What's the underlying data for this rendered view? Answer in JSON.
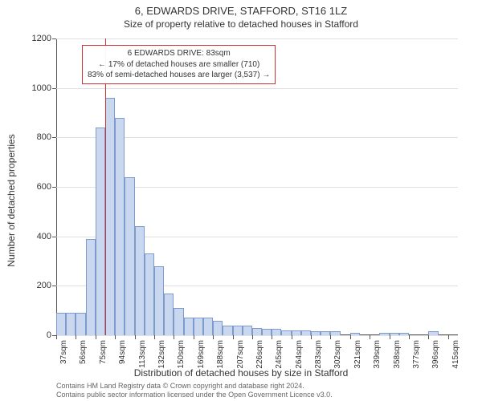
{
  "title": "6, EDWARDS DRIVE, STAFFORD, ST16 1LZ",
  "subtitle": "Size of property relative to detached houses in Stafford",
  "y_axis": {
    "label": "Number of detached properties",
    "min": 0,
    "max": 1200,
    "ticks": [
      0,
      200,
      400,
      600,
      800,
      1000,
      1200
    ]
  },
  "x_axis": {
    "label": "Distribution of detached houses by size in Stafford",
    "tick_labels": [
      "37sqm",
      "56sqm",
      "75sqm",
      "94sqm",
      "113sqm",
      "132sqm",
      "150sqm",
      "169sqm",
      "188sqm",
      "207sqm",
      "226sqm",
      "245sqm",
      "264sqm",
      "283sqm",
      "302sqm",
      "321sqm",
      "339sqm",
      "358sqm",
      "377sqm",
      "396sqm",
      "415sqm"
    ]
  },
  "histogram": {
    "type": "histogram",
    "bar_color": "#c9d8ef",
    "bar_border": "#7d9bce",
    "bin_count": 41,
    "values": [
      90,
      90,
      90,
      390,
      840,
      960,
      880,
      640,
      440,
      330,
      280,
      170,
      110,
      70,
      70,
      70,
      60,
      40,
      40,
      40,
      30,
      25,
      25,
      20,
      20,
      20,
      15,
      15,
      15,
      0,
      10,
      0,
      0,
      10,
      10,
      10,
      0,
      0,
      15,
      0,
      0
    ]
  },
  "reference_line": {
    "color": "#cc3333",
    "position_sqm": 83,
    "x_range_start": 37,
    "x_range_end": 415
  },
  "info_box": {
    "border_color": "#cc3333",
    "lines": [
      "6 EDWARDS DRIVE: 83sqm",
      "← 17% of detached houses are smaller (710)",
      "83% of semi-detached houses are larger (3,537) →"
    ]
  },
  "colors": {
    "background": "#ffffff",
    "grid": "#e0e0e0",
    "axis": "#555555",
    "text": "#333333"
  },
  "fonts": {
    "title_size_pt": 13,
    "subtitle_size_pt": 12,
    "axis_label_size_pt": 12,
    "tick_size_pt": 10,
    "info_box_size_pt": 10,
    "footer_size_pt": 9
  },
  "footer": {
    "line1": "Contains HM Land Registry data © Crown copyright and database right 2024.",
    "line2": "Contains public sector information licensed under the Open Government Licence v3.0."
  }
}
